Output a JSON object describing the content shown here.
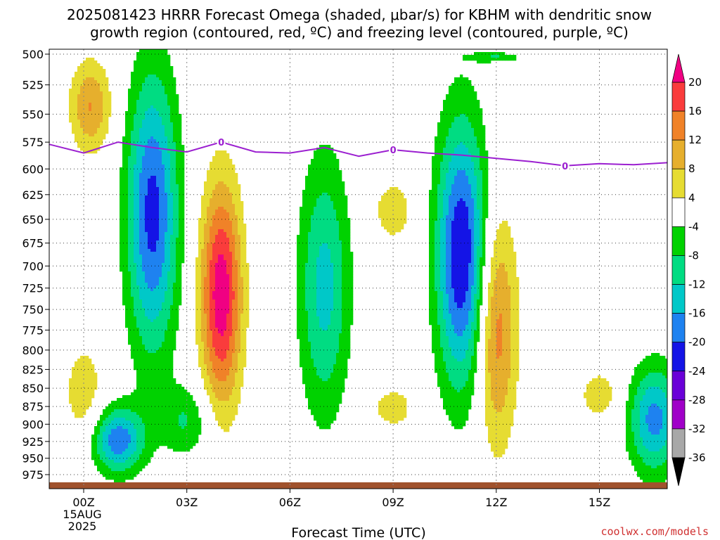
{
  "title": {
    "line1": "2025081423 HRRR Forecast Omega (shaded, μbar/s) for KBHM with dendritic snow",
    "line2": "growth region (contoured, red, ºC) and freezing level (contoured, purple, ºC)"
  },
  "credit": "coolwx.com/models",
  "chart_data": {
    "type": "heatmap",
    "title": "2025081423 HRRR Forecast Omega (shaded, μbar/s) for KBHM with dendritic snow growth region (contoured, red, ºC) and freezing level (contoured, purple, ºC)",
    "xlabel": "Forecast Time (UTC)",
    "ylabel": "",
    "x_ticks": [
      {
        "hour": 0,
        "label": "00Z",
        "sublabel1": "15AUG",
        "sublabel2": "2025"
      },
      {
        "hour": 3,
        "label": "03Z"
      },
      {
        "hour": 6,
        "label": "06Z"
      },
      {
        "hour": 9,
        "label": "09Z"
      },
      {
        "hour": 12,
        "label": "12Z"
      },
      {
        "hour": 15,
        "label": "15Z"
      }
    ],
    "xlim": [
      -1,
      17
    ],
    "y_ticks": [
      500,
      525,
      550,
      575,
      600,
      625,
      650,
      675,
      700,
      725,
      750,
      775,
      800,
      825,
      850,
      875,
      900,
      925,
      950,
      975
    ],
    "y_unit": "mb",
    "ylim": [
      500,
      985
    ],
    "grid": true,
    "colorbar": {
      "levels": [
        -36,
        -32,
        -28,
        -24,
        -20,
        -16,
        -12,
        -8,
        -4,
        4,
        8,
        12,
        16,
        20
      ],
      "labels": [
        "-36",
        "-32",
        "-28",
        "-24",
        "-20",
        "-16",
        "-12",
        "-8",
        "-4",
        "4",
        "8",
        "12",
        "16",
        "20"
      ],
      "colors": {
        "below_-36": "#000000",
        "-36_-32": "#a8a8a8",
        "-32_-28": "#a000c8",
        "-28_-24": "#6a00d8",
        "-24_-20": "#1414e6",
        "-20_-16": "#1e82f0",
        "-16_-12": "#00c8c8",
        "-12_-8": "#00dc82",
        "-8_-4": "#00d200",
        "-4_4": "#ffffff",
        "4_8": "#e6dc32",
        "8_12": "#e6af2d",
        "12_16": "#f08228",
        "16_20": "#fa3c3c",
        "above_20": "#f00082"
      }
    },
    "omega_features": [
      {
        "name": "ascent 00-01Z upper",
        "hour_center": 0.2,
        "mb_top": 500,
        "mb_bottom": 590,
        "peak": 9
      },
      {
        "name": "ascent 00Z lower",
        "hour_center": 0.0,
        "mb_top": 780,
        "mb_bottom": 940,
        "peak": 5
      },
      {
        "name": "sink 02Z",
        "hour_center": 2.0,
        "mb_top": 500,
        "mb_bottom": 830,
        "peak": -16
      },
      {
        "name": "sink 01Z low",
        "hour_center": 1.0,
        "mb_top": 870,
        "mb_bottom": 980,
        "peak": -14
      },
      {
        "name": "sink 03Z low",
        "hour_center": 3.0,
        "mb_top": 840,
        "mb_bottom": 955,
        "peak": -6
      },
      {
        "name": "ascent 04Z",
        "hour_center": 4.0,
        "mb_top": 600,
        "mb_bottom": 895,
        "peak": 17
      },
      {
        "name": "sink 07Z",
        "hour_center": 7.0,
        "mb_top": 572,
        "mb_bottom": 915,
        "peak": -10
      },
      {
        "name": "ascent 09Z mid",
        "hour_center": 9.0,
        "mb_top": 605,
        "mb_bottom": 680,
        "peak": 5
      },
      {
        "name": "ascent 09Z low",
        "hour_center": 9.0,
        "mb_top": 845,
        "mb_bottom": 910,
        "peak": 5
      },
      {
        "name": "sink 11Z",
        "hour_center": 11.0,
        "mb_top": 540,
        "mb_bottom": 875,
        "peak": -18
      },
      {
        "name": "ascent 12Z",
        "hour_center": 12.0,
        "mb_top": 625,
        "mb_bottom": 955,
        "peak": 11
      },
      {
        "name": "ascent 15Z low",
        "hour_center": 15.0,
        "mb_top": 820,
        "mb_bottom": 900,
        "peak": 5
      },
      {
        "name": "sink 17Z low",
        "hour_center": 16.6,
        "mb_top": 810,
        "mb_bottom": 985,
        "peak": -13
      },
      {
        "name": "sink 12Z top",
        "hour_center": 12.0,
        "mb_top": 500,
        "mb_bottom": 505,
        "peak": -6
      }
    ],
    "freezing_level": {
      "name": "freezing level (0 ºC)",
      "color": "#9b1fd0",
      "contour_label": "0",
      "label_hours": [
        4,
        9,
        14
      ],
      "points": [
        {
          "hour": -1.0,
          "mb": 577
        },
        {
          "hour": 0.0,
          "mb": 585
        },
        {
          "hour": 1.0,
          "mb": 575
        },
        {
          "hour": 2.0,
          "mb": 580
        },
        {
          "hour": 3.0,
          "mb": 584
        },
        {
          "hour": 4.0,
          "mb": 575
        },
        {
          "hour": 5.0,
          "mb": 584
        },
        {
          "hour": 6.0,
          "mb": 585
        },
        {
          "hour": 7.0,
          "mb": 580
        },
        {
          "hour": 8.0,
          "mb": 588
        },
        {
          "hour": 9.0,
          "mb": 582
        },
        {
          "hour": 10.0,
          "mb": 585
        },
        {
          "hour": 11.0,
          "mb": 587
        },
        {
          "hour": 12.0,
          "mb": 590
        },
        {
          "hour": 13.0,
          "mb": 593
        },
        {
          "hour": 14.0,
          "mb": 597
        },
        {
          "hour": 15.0,
          "mb": 595
        },
        {
          "hour": 16.0,
          "mb": 596
        },
        {
          "hour": 17.0,
          "mb": 594
        }
      ]
    },
    "terrain": {
      "color": "#a0522d",
      "mb": 987
    }
  }
}
